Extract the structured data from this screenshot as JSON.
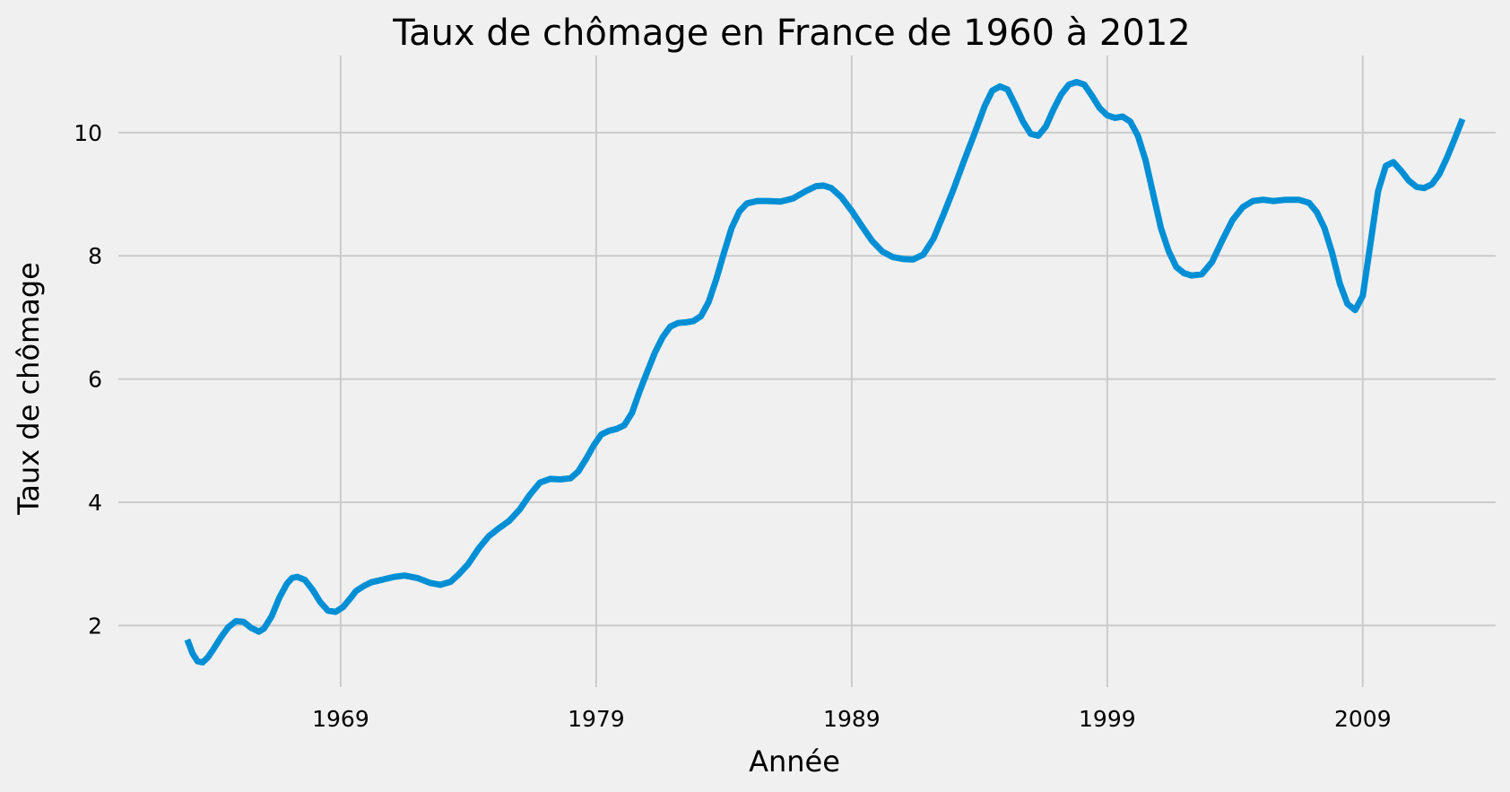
{
  "colors": {
    "background": "#f0f0f0",
    "grid": "#cbcbcb",
    "series": "#008fd5"
  },
  "chart_data": {
    "type": "line",
    "title": "Taux de chômage en France de 1960 à 2012",
    "xlabel": "Année",
    "ylabel": "Taux de chômage",
    "grid": true,
    "xlim": [
      1960.3,
      2014.2
    ],
    "ylim": [
      1.0,
      11.25
    ],
    "x_ticks": [
      1969,
      1979,
      1989,
      1999,
      2009
    ],
    "x_tick_labels": [
      "1969",
      "1979",
      "1989",
      "1999",
      "2009"
    ],
    "y_ticks": [
      2,
      4,
      6,
      8,
      10
    ],
    "y_tick_labels": [
      "2",
      "4",
      "6",
      "8",
      "10"
    ],
    "series": [
      {
        "x": [
          1963.0,
          1963.2,
          1963.4,
          1963.6,
          1963.8,
          1964.0,
          1964.3,
          1964.6,
          1964.9,
          1965.2,
          1965.5,
          1965.8,
          1966.0,
          1966.3,
          1966.6,
          1966.9,
          1967.1,
          1967.3,
          1967.6,
          1967.9,
          1968.2,
          1968.5,
          1968.8,
          1969.1,
          1969.4,
          1969.6,
          1969.9,
          1970.2,
          1970.5,
          1970.8,
          1971.1,
          1971.5,
          1972.0,
          1972.5,
          1972.9,
          1973.3,
          1973.6,
          1974.0,
          1974.4,
          1974.8,
          1975.2,
          1975.6,
          1976.0,
          1976.4,
          1976.8,
          1977.2,
          1977.6,
          1978.0,
          1978.3,
          1978.6,
          1978.9,
          1979.2,
          1979.5,
          1979.8,
          1980.1,
          1980.4,
          1980.7,
          1981.0,
          1981.3,
          1981.6,
          1981.9,
          1982.2,
          1982.5,
          1982.8,
          1983.1,
          1983.4,
          1983.7,
          1984.0,
          1984.3,
          1984.6,
          1984.9,
          1985.3,
          1985.7,
          1986.2,
          1986.7,
          1987.2,
          1987.6,
          1987.9,
          1988.2,
          1988.6,
          1989.0,
          1989.4,
          1989.8,
          1990.2,
          1990.6,
          1991.0,
          1991.4,
          1991.8,
          1992.2,
          1992.6,
          1993.0,
          1993.4,
          1993.8,
          1994.2,
          1994.5,
          1994.8,
          1995.1,
          1995.4,
          1995.7,
          1996.0,
          1996.3,
          1996.6,
          1996.9,
          1997.2,
          1997.5,
          1997.8,
          1998.1,
          1998.4,
          1998.7,
          1999.0,
          1999.3,
          1999.6,
          1999.9,
          2000.2,
          2000.5,
          2000.8,
          2001.1,
          2001.4,
          2001.7,
          2002.0,
          2002.3,
          2002.7,
          2003.1,
          2003.5,
          2003.9,
          2004.3,
          2004.7,
          2005.1,
          2005.5,
          2006.0,
          2006.5,
          2006.9,
          2007.2,
          2007.5,
          2007.8,
          2008.1,
          2008.4,
          2008.7,
          2009.0,
          2009.3,
          2009.6,
          2009.9,
          2010.2,
          2010.5,
          2010.8,
          2011.1,
          2011.4,
          2011.7,
          2012.0,
          2012.3,
          2012.6,
          2012.9
        ],
        "values": [
          1.77,
          1.55,
          1.42,
          1.4,
          1.48,
          1.6,
          1.8,
          1.97,
          2.07,
          2.06,
          1.96,
          1.9,
          1.95,
          2.15,
          2.45,
          2.68,
          2.77,
          2.79,
          2.74,
          2.58,
          2.38,
          2.24,
          2.22,
          2.3,
          2.45,
          2.56,
          2.64,
          2.7,
          2.73,
          2.76,
          2.79,
          2.81,
          2.77,
          2.69,
          2.66,
          2.71,
          2.82,
          3.0,
          3.25,
          3.45,
          3.58,
          3.7,
          3.88,
          4.12,
          4.32,
          4.38,
          4.37,
          4.39,
          4.5,
          4.7,
          4.92,
          5.1,
          5.16,
          5.19,
          5.25,
          5.45,
          5.8,
          6.12,
          6.43,
          6.68,
          6.85,
          6.91,
          6.92,
          6.94,
          7.02,
          7.25,
          7.62,
          8.05,
          8.45,
          8.72,
          8.85,
          8.89,
          8.89,
          8.88,
          8.93,
          9.05,
          9.13,
          9.14,
          9.1,
          8.95,
          8.73,
          8.48,
          8.24,
          8.07,
          7.98,
          7.95,
          7.94,
          8.02,
          8.28,
          8.68,
          9.1,
          9.55,
          9.98,
          10.43,
          10.68,
          10.75,
          10.7,
          10.45,
          10.18,
          9.98,
          9.95,
          10.1,
          10.38,
          10.62,
          10.78,
          10.82,
          10.78,
          10.6,
          10.4,
          10.28,
          10.24,
          10.26,
          10.18,
          9.95,
          9.55,
          9.0,
          8.45,
          8.08,
          7.82,
          7.72,
          7.68,
          7.7,
          7.9,
          8.25,
          8.58,
          8.79,
          8.89,
          8.91,
          8.89,
          8.91,
          8.91,
          8.86,
          8.71,
          8.45,
          8.05,
          7.55,
          7.22,
          7.12,
          7.35,
          8.2,
          9.05,
          9.46,
          9.52,
          9.38,
          9.22,
          9.12,
          9.1,
          9.16,
          9.33,
          9.6,
          9.9,
          10.22
        ]
      }
    ]
  }
}
